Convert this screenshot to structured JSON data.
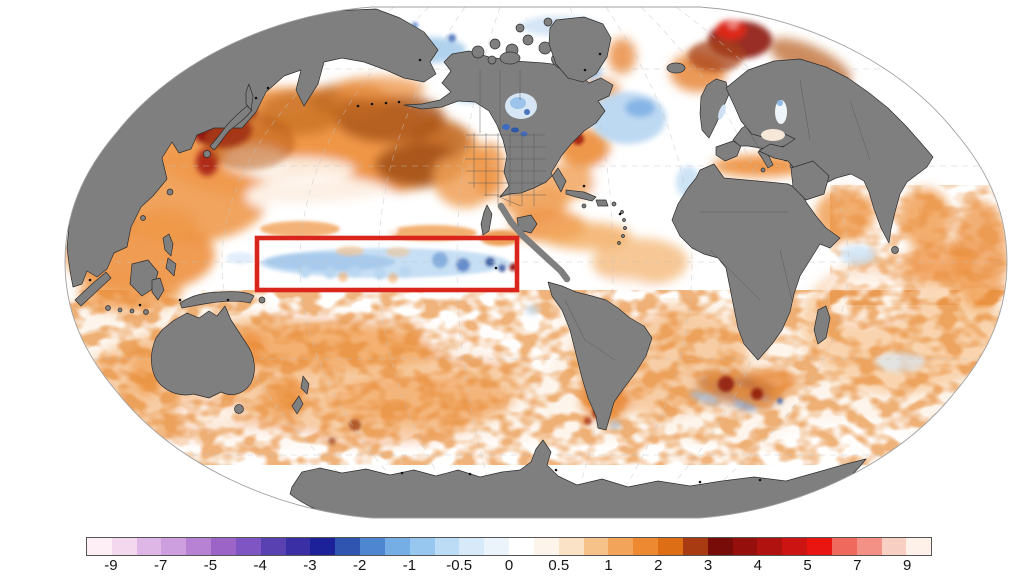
{
  "colorbar": {
    "ticks": [
      "-9",
      "-7",
      "-5",
      "-4",
      "-3",
      "-2",
      "-1",
      "-0.5",
      "0",
      "0.5",
      "1",
      "2",
      "3",
      "4",
      "5",
      "7",
      "9"
    ],
    "tick_values": [
      -9,
      -7,
      -5,
      -4,
      -3,
      -2,
      -1,
      -0.5,
      0,
      0.5,
      1,
      2,
      3,
      4,
      5,
      7,
      9
    ],
    "segments": [
      "#fdeff5",
      "#f3d8ee",
      "#dfb7e7",
      "#cd9fde",
      "#b782d3",
      "#9c64c7",
      "#7e55c2",
      "#5a41b2",
      "#3b2fa5",
      "#1d2199",
      "#2f55b0",
      "#4f86d2",
      "#74aee4",
      "#97c6ee",
      "#bcdcf5",
      "#d8eafa",
      "#ebf4fb",
      "#ffffff",
      "#fdf5ec",
      "#fae2c6",
      "#f6c289",
      "#f3a45b",
      "#ed8931",
      "#de6e16",
      "#a83b12",
      "#770c08",
      "#950f0c",
      "#b01210",
      "#cc1412",
      "#e81511",
      "#ef6a5d",
      "#f49186",
      "#f8cfc3",
      "#fdf1ea"
    ],
    "border_color": "#555555",
    "label_color": "#151515"
  },
  "map": {
    "land_color": "#7f7f7f",
    "coast_color": "#2e2e2e",
    "internal_border_color": "#565656",
    "graticule_color": "#c4c4c4",
    "boundary_color": "#a0a0a0",
    "ocean_color": "#ffffff",
    "highlight_box": {
      "color": "#d9251c",
      "region": "equatorial-pacific-cold-anomaly"
    }
  }
}
